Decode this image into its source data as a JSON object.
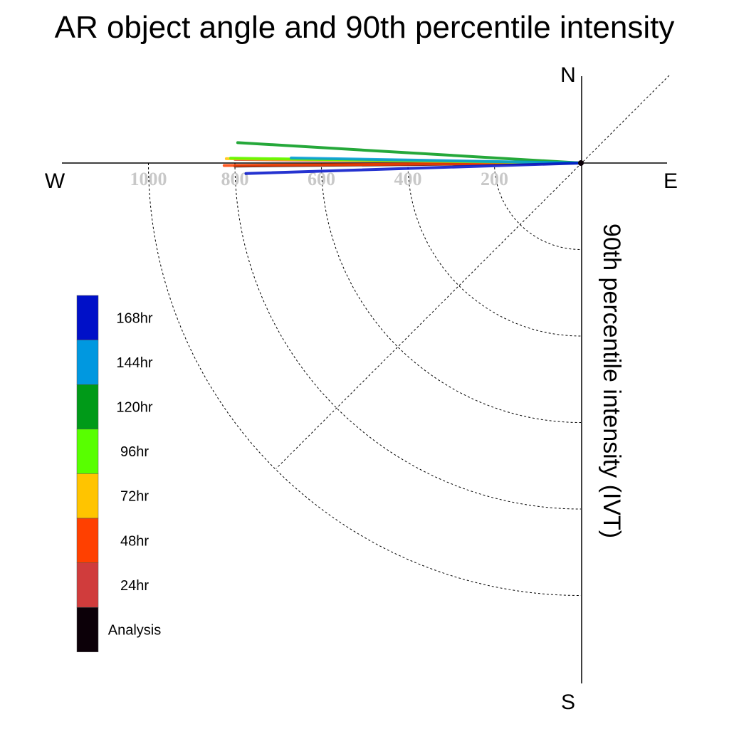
{
  "chart_data": {
    "type": "polar-line",
    "title": "AR object angle and 90th percentile intensity",
    "radial_label": "90th percentile intensity (IVT)",
    "compass": {
      "north": "N",
      "south": "S",
      "east": "E",
      "west": "W"
    },
    "radial_ticks": [
      200,
      400,
      600,
      800,
      1000
    ],
    "radial_max": 1200,
    "legend": [
      {
        "label": "168hr",
        "color": "#0010c8"
      },
      {
        "label": "144hr",
        "color": "#0098e0"
      },
      {
        "label": "120hr",
        "color": "#009a18"
      },
      {
        "label": "96hr",
        "color": "#58ff00"
      },
      {
        "label": "72hr",
        "color": "#ffc400"
      },
      {
        "label": "48hr",
        "color": "#ff4000"
      },
      {
        "label": "24hr",
        "color": "#d03c3c"
      },
      {
        "label": "Analysis",
        "color": "#0c0008"
      }
    ],
    "series": [
      {
        "name": "Analysis",
        "color": "#0c0008",
        "intensity": 800,
        "angle_deg": 180.5
      },
      {
        "name": "24hr",
        "color": "#d03c3c",
        "intensity": 800,
        "angle_deg": 179.4
      },
      {
        "name": "48hr",
        "color": "#ff4000",
        "intensity": 825,
        "angle_deg": 180.4
      },
      {
        "name": "72hr",
        "color": "#ffc400",
        "intensity": 820,
        "angle_deg": 179.3
      },
      {
        "name": "96hr",
        "color": "#58ff00",
        "intensity": 810,
        "angle_deg": 179.2
      },
      {
        "name": "120hr",
        "color": "#009a18",
        "intensity": 795,
        "angle_deg": 176.6
      },
      {
        "name": "144hr",
        "color": "#0098e0",
        "intensity": 670,
        "angle_deg": 179.0
      },
      {
        "name": "168hr",
        "color": "#0010c8",
        "intensity": 775,
        "angle_deg": 181.8
      }
    ]
  }
}
